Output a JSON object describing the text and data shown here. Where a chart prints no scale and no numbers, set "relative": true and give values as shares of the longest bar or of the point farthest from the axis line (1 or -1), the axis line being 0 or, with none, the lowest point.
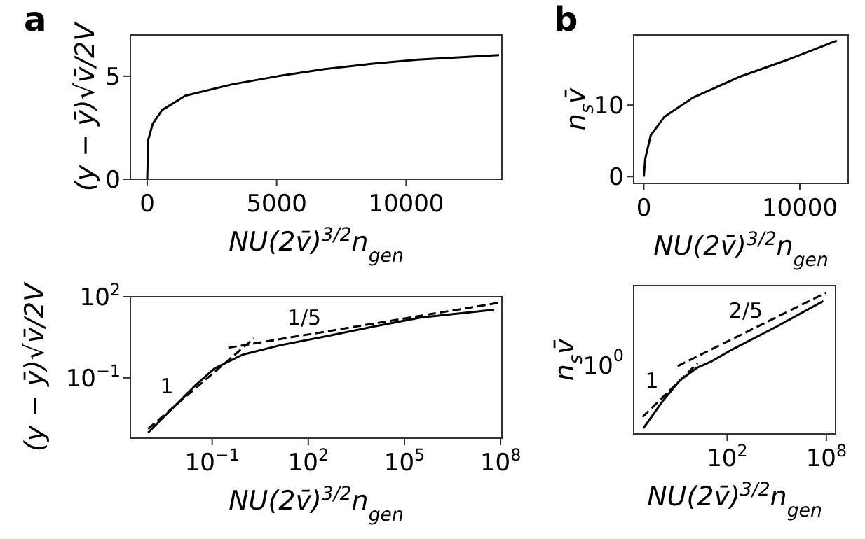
{
  "chart_data": [
    {
      "type": "line",
      "title": "a",
      "xlabel": "NU(2v̄)$^{3/2}$n$_{gen}$",
      "ylabel": "(y − ȳ)√v̄/2V",
      "xlim": [
        -650,
        13700
      ],
      "ylim": [
        0,
        7
      ],
      "xticks": [
        0,
        5000,
        10000
      ],
      "yticks": [
        0,
        5
      ],
      "series": [
        {
          "color": "#000000",
          "line_style": "solid",
          "x": [
            0,
            36,
            215,
            575,
            1470,
            3270,
            5060,
            6860,
            8650,
            10450,
            13590
          ],
          "values": [
            0,
            1.9,
            2.7,
            3.36,
            4.05,
            4.6,
            5.0,
            5.34,
            5.6,
            5.8,
            6.02
          ]
        }
      ]
    },
    {
      "type": "line",
      "xlabel": "NU(2v̄)$^{3/2}$n$_{gen}$",
      "ylabel": "(y − ȳ)√v̄/2V",
      "log": "xy",
      "xlim": [
        0.00028,
        110000000
      ],
      "ylim": [
        0.00059,
        100
      ],
      "xticks": [
        {
          "value": 0.1,
          "label": "10$^{−1}$"
        },
        {
          "value": 100,
          "label": "10$^{2}$"
        },
        {
          "value": 100000,
          "label": "10$^{5}$"
        },
        {
          "value": 100000000,
          "label": "10$^{8}$"
        }
      ],
      "yticks": [
        {
          "value": 0.1,
          "label": "10$^{−1}$"
        },
        {
          "value": 100,
          "label": "10$^{2}$"
        }
      ],
      "series": [
        {
          "color": "#000000",
          "line_style": "solid",
          "x": [
            0.001,
            0.031,
            0.117,
            0.89,
            13,
            380,
            11000,
            316000,
            63000000
          ],
          "values": [
            0.00095,
            0.055,
            0.22,
            0.72,
            1.6,
            3.5,
            7.9,
            17,
            33
          ]
        },
        {
          "color": "#000000",
          "line_style": "dashed",
          "x": [
            0.001,
            2.0
          ],
          "values": [
            0.0013,
            2.9
          ]
        },
        {
          "color": "#000000",
          "line_style": "dashed",
          "x": [
            0.32,
            89000000
          ],
          "values": [
            1.3,
            60
          ]
        }
      ],
      "annotations": [
        "1",
        "1/5"
      ]
    },
    {
      "type": "line",
      "title": "b",
      "xlabel": "NU(2v̄)$^{3/2}$n$_{gen}$",
      "ylabel": "n$_{s}$v̄",
      "xlim": [
        -650,
        13100
      ],
      "ylim": [
        -0.95,
        19.8
      ],
      "xticks": [
        0,
        10000
      ],
      "yticks": [
        0,
        10
      ],
      "series": [
        {
          "color": "#000000",
          "line_style": "solid",
          "x": [
            0,
            90,
            445,
            1335,
            3115,
            6080,
            9050,
            12370
          ],
          "values": [
            0,
            2.5,
            5.8,
            8.4,
            11,
            13.9,
            16.2,
            19
          ]
        }
      ]
    },
    {
      "type": "line",
      "xlabel": "NU(2v̄)$^{3/2}$n$_{gen}$",
      "ylabel": "n$_{s}$v̄",
      "log": "x",
      "relative": true,
      "xlim": [
        0.00022,
        360000000
      ],
      "xticks": [
        {
          "value": 100,
          "label": "10$^{2}$"
        },
        {
          "value": 100000000,
          "label": "10$^{8}$"
        }
      ],
      "series": [
        {
          "color": "#000000",
          "line_style": "solid",
          "x": [
            0.00085,
            0.012,
            0.14,
            1.6,
            10,
            220,
            100000,
            65000000
          ],
          "values": [
            0.04,
            0.23,
            0.38,
            0.47,
            0.51,
            0.6,
            0.76,
            0.94
          ]
        },
        {
          "color": "#000000",
          "line_style": "dashed",
          "x": [
            0.00076,
            1.6
          ],
          "values": [
            0.12,
            0.5
          ]
        },
        {
          "color": "#000000",
          "line_style": "dashed",
          "x": [
            0.1,
            100000000
          ],
          "values": [
            0.48,
            1
          ]
        }
      ],
      "annotations": [
        "10$^{0}$",
        "1",
        "2/5"
      ]
    }
  ]
}
